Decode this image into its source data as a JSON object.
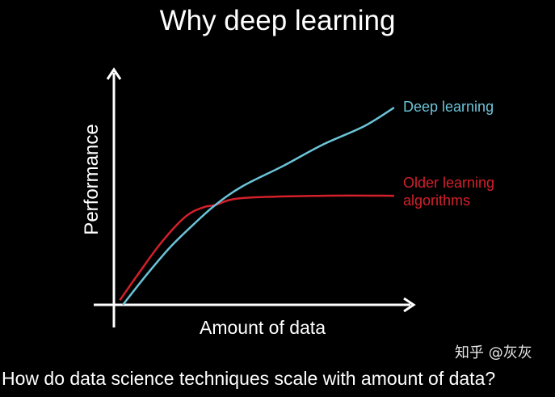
{
  "chart_data": {
    "type": "line",
    "title": "Why deep learning",
    "xlabel": "Amount of data",
    "ylabel": "Performance",
    "xlim": [
      0,
      100
    ],
    "ylim": [
      0,
      100
    ],
    "grid": false,
    "legend": "inline-right",
    "series": [
      {
        "name": "Deep learning",
        "color": "#6cc3d8",
        "x": [
          3,
          11,
          19,
          27,
          34,
          43,
          57,
          70,
          84,
          94
        ],
        "y": [
          0,
          13,
          25,
          35,
          43,
          51,
          60,
          69,
          77,
          85
        ]
      },
      {
        "name": "Older learning algorithms",
        "name_lines": [
          "Older learning",
          "algorithms"
        ],
        "color": "#d4202a",
        "x": [
          2,
          8,
          16,
          24,
          30,
          34,
          43,
          70,
          94
        ],
        "y": [
          2,
          13,
          27,
          38,
          42,
          43,
          46,
          47,
          47
        ]
      }
    ]
  },
  "caption": "How do data science techniques scale with amount of data?",
  "watermark": "知乎 @灰灰"
}
